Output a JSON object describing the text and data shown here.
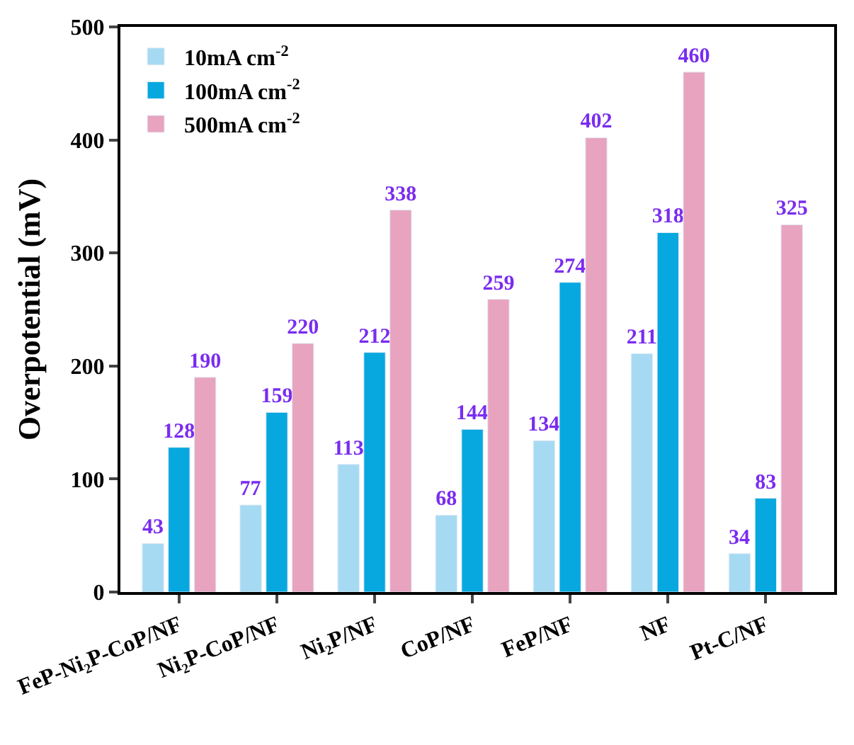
{
  "chart_data": {
    "type": "bar",
    "ylabel": "Overpotential (mV)",
    "categories": [
      "FeP-Ni₂P-CoP/NF",
      "Ni₂P-CoP/NF",
      "Ni₂P/NF",
      "CoP/NF",
      "FeP/NF",
      "NF",
      "Pt-C/NF"
    ],
    "series": [
      {
        "name": "10mA cm$^{-2}$",
        "color": "#a6daf2",
        "values": [
          43,
          77,
          113,
          68,
          134,
          211,
          34
        ]
      },
      {
        "name": "100mA cm$^{-2}$",
        "color": "#06a8df",
        "values": [
          128,
          159,
          212,
          144,
          274,
          318,
          83
        ]
      },
      {
        "name": "500mA cm$^{-2}$",
        "color": "#e8a3bf",
        "values": [
          190,
          220,
          338,
          259,
          402,
          460,
          325
        ]
      }
    ],
    "ylim": [
      0,
      500
    ],
    "yticks": [
      0,
      100,
      200,
      300,
      400,
      500
    ],
    "data_labels": true,
    "legend": "top left"
  }
}
